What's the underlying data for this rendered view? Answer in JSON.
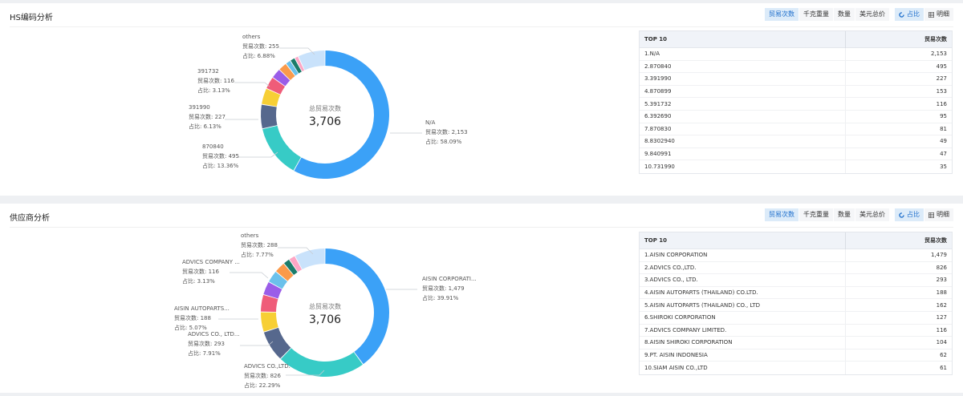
{
  "panels": [
    {
      "title": "HS编码分析",
      "toolbar": {
        "metrics": [
          "贸易次数",
          "千克重量",
          "数量",
          "美元总价"
        ],
        "active_metric": 0,
        "views": [
          {
            "label": "占比",
            "icon": "donut-icon",
            "active": true
          },
          {
            "label": "明细",
            "icon": "table-icon",
            "active": false
          }
        ]
      },
      "center": {
        "label": "总贸易次数",
        "value": "3,706"
      },
      "labels": [
        {
          "name": "others",
          "count_text": "贸易次数: 255",
          "pct_text": "占比: 6.88%"
        },
        {
          "name": "391732",
          "count_text": "贸易次数: 116",
          "pct_text": "占比: 3.13%"
        },
        {
          "name": "391990",
          "count_text": "贸易次数: 227",
          "pct_text": "占比: 6.13%"
        },
        {
          "name": "870840",
          "count_text": "贸易次数: 495",
          "pct_text": "占比: 13.36%"
        },
        {
          "name": "N/A",
          "count_text": "贸易次数: 2,153",
          "pct_text": "占比: 58.09%"
        }
      ],
      "table": {
        "headers": [
          "TOP 10",
          "贸易次数"
        ],
        "rows": [
          [
            "1.N/A",
            "2,153"
          ],
          [
            "2.870840",
            "495"
          ],
          [
            "3.391990",
            "227"
          ],
          [
            "4.870899",
            "153"
          ],
          [
            "5.391732",
            "116"
          ],
          [
            "6.392690",
            "95"
          ],
          [
            "7.870830",
            "81"
          ],
          [
            "8.8302940",
            "49"
          ],
          [
            "9.840991",
            "47"
          ],
          [
            "10.731990",
            "35"
          ]
        ]
      }
    },
    {
      "title": "供应商分析",
      "toolbar": {
        "metrics": [
          "贸易次数",
          "千克重量",
          "数量",
          "美元总价"
        ],
        "active_metric": 0,
        "views": [
          {
            "label": "占比",
            "icon": "donut-icon",
            "active": true
          },
          {
            "label": "明细",
            "icon": "table-icon",
            "active": false
          }
        ]
      },
      "center": {
        "label": "总贸易次数",
        "value": "3,706"
      },
      "labels": [
        {
          "name": "others",
          "count_text": "贸易次数: 288",
          "pct_text": "占比: 7.77%"
        },
        {
          "name": "ADVICS COMPANY ...",
          "count_text": "贸易次数: 116",
          "pct_text": "占比: 3.13%"
        },
        {
          "name": "AISIN AUTOPARTS...",
          "count_text": "贸易次数: 188",
          "pct_text": "占比: 5.07%"
        },
        {
          "name": "ADVICS CO., LTD...",
          "count_text": "贸易次数: 293",
          "pct_text": "占比: 7.91%"
        },
        {
          "name": "ADVICS CO.,LTD.",
          "count_text": "贸易次数: 826",
          "pct_text": "占比: 22.29%"
        },
        {
          "name": "AISIN CORPORATI...",
          "count_text": "贸易次数: 1,479",
          "pct_text": "占比: 39.91%"
        }
      ],
      "table": {
        "headers": [
          "TOP 10",
          "贸易次数"
        ],
        "rows": [
          [
            "1.AISIN CORPORATION",
            "1,479"
          ],
          [
            "2.ADVICS CO.,LTD.",
            "826"
          ],
          [
            "3.ADVICS CO., LTD.",
            "293"
          ],
          [
            "4.AISIN AUTOPARTS (THAILAND) CO.LTD.",
            "188"
          ],
          [
            "5.AISIN AUTOPARTS (THAILAND) CO., LTD",
            "162"
          ],
          [
            "6.SHIROKI CORPORATION",
            "127"
          ],
          [
            "7.ADVICS COMPANY LIMITED.",
            "116"
          ],
          [
            "8.AISIN SHIROKI CORPORATION",
            "104"
          ],
          [
            "9.PT. AISIN INDONESIA",
            "62"
          ],
          [
            "10.SIAM AISIN CO.,LTD",
            "61"
          ]
        ]
      }
    }
  ],
  "chart_data": [
    {
      "type": "pie",
      "variant": "donut",
      "start": "top",
      "direction": "clockwise",
      "slices": [
        {
          "name": "N/A",
          "value": 2153,
          "color": "#3ba1f7"
        },
        {
          "name": "870840",
          "value": 495,
          "color": "#37cbc6"
        },
        {
          "name": "391990",
          "value": 227,
          "color": "#56688d"
        },
        {
          "name": "870899",
          "value": 153,
          "color": "#f7cf35"
        },
        {
          "name": "391732",
          "value": 116,
          "color": "#ef5c79"
        },
        {
          "name": "392690",
          "value": 95,
          "color": "#9a5de8"
        },
        {
          "name": "870830",
          "value": 81,
          "color": "#fa9a4b"
        },
        {
          "name": "8302940",
          "value": 49,
          "color": "#6bc1eb"
        },
        {
          "name": "840991",
          "value": 47,
          "color": "#1b7c6b"
        },
        {
          "name": "731990",
          "value": 35,
          "color": "#fda6c5"
        },
        {
          "name": "others",
          "value": 255,
          "color": "#c9e2fb"
        }
      ]
    },
    {
      "type": "pie",
      "variant": "donut",
      "start": "top",
      "direction": "clockwise",
      "slices": [
        {
          "name": "AISIN CORPORATION",
          "value": 1479,
          "color": "#3ba1f7"
        },
        {
          "name": "ADVICS CO.,LTD.",
          "value": 826,
          "color": "#37cbc6"
        },
        {
          "name": "ADVICS CO., LTD.",
          "value": 293,
          "color": "#56688d"
        },
        {
          "name": "AISIN AUTOPARTS (THAILAND) CO.LTD.",
          "value": 188,
          "color": "#f7cf35"
        },
        {
          "name": "AISIN AUTOPARTS (THAILAND) CO., LTD",
          "value": 162,
          "color": "#ef5c79"
        },
        {
          "name": "SHIROKI CORPORATION",
          "value": 127,
          "color": "#9a5de8"
        },
        {
          "name": "ADVICS COMPANY LIMITED.",
          "value": 116,
          "color": "#6bc1eb"
        },
        {
          "name": "AISIN SHIROKI CORPORATION",
          "value": 104,
          "color": "#fa9a4b"
        },
        {
          "name": "PT. AISIN INDONESIA",
          "value": 62,
          "color": "#1b7c6b"
        },
        {
          "name": "SIAM AISIN CO.,LTD",
          "value": 61,
          "color": "#fda6c5"
        },
        {
          "name": "others",
          "value": 288,
          "color": "#c9e2fb"
        }
      ]
    }
  ]
}
